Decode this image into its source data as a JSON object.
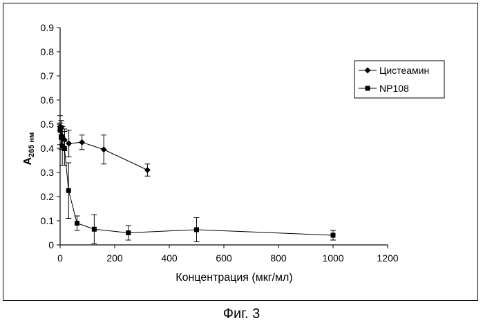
{
  "caption": "Фиг. 3",
  "chart_data": {
    "type": "scatter",
    "xlabel": "Концентрация (мкг/мл)",
    "ylabel": "A",
    "ylabel_subscript": "265 нм",
    "xlim": [
      0,
      1200
    ],
    "ylim": [
      0,
      0.9
    ],
    "x_ticks": [
      0,
      200,
      400,
      600,
      800,
      1000,
      1200
    ],
    "y_ticks": [
      0,
      0.1,
      0.2,
      0.3,
      0.4,
      0.5,
      0.6,
      0.7,
      0.8,
      0.9
    ],
    "grid": false,
    "legend_position": "top-right",
    "series": [
      {
        "name": "Цистеамин",
        "marker": "diamond",
        "color": "#000000",
        "points": [
          {
            "x": 0,
            "y": 0.49,
            "err": 0.015
          },
          {
            "x": 4,
            "y": 0.485,
            "err": 0.03
          },
          {
            "x": 8,
            "y": 0.45,
            "err": 0.04
          },
          {
            "x": 16,
            "y": 0.435,
            "err": 0.045
          },
          {
            "x": 32,
            "y": 0.42,
            "err": 0.055
          },
          {
            "x": 80,
            "y": 0.425,
            "err": 0.03
          },
          {
            "x": 160,
            "y": 0.395,
            "err": 0.06
          },
          {
            "x": 320,
            "y": 0.31,
            "err": 0.025
          }
        ]
      },
      {
        "name": "NP108",
        "marker": "square",
        "color": "#000000",
        "points": [
          {
            "x": 0,
            "y": 0.475,
            "err": 0.06
          },
          {
            "x": 4,
            "y": 0.445,
            "err": 0.05
          },
          {
            "x": 8,
            "y": 0.41,
            "err": 0.08
          },
          {
            "x": 16,
            "y": 0.4,
            "err": 0.07
          },
          {
            "x": 31,
            "y": 0.225,
            "err": 0.115
          },
          {
            "x": 62,
            "y": 0.09,
            "err": 0.03
          },
          {
            "x": 125,
            "y": 0.065,
            "err": 0.06
          },
          {
            "x": 250,
            "y": 0.05,
            "err": 0.03
          },
          {
            "x": 500,
            "y": 0.063,
            "err": 0.05
          },
          {
            "x": 1000,
            "y": 0.04,
            "err": 0.02
          }
        ]
      }
    ]
  }
}
